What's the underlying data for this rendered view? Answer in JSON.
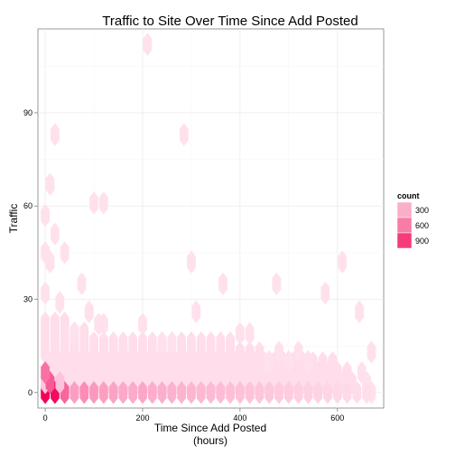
{
  "chart_data": {
    "type": "hexbin",
    "title": "Traffic to Site Over Time Since Add Posted",
    "xlabel_line1": "Time Since Add Posted",
    "xlabel_line2": "(hours)",
    "ylabel": "Traffic",
    "xlim": [
      -15,
      695
    ],
    "ylim": [
      -5,
      117
    ],
    "xticks": [
      0,
      200,
      400,
      600
    ],
    "yticks": [
      0,
      30,
      60,
      90
    ],
    "grid": true,
    "legend": {
      "title": "count",
      "placement": "right",
      "entries": [
        {
          "label": "300",
          "color": "#fbaec9"
        },
        {
          "label": "600",
          "color": "#f97ca5"
        },
        {
          "label": "900",
          "color": "#f73b7a"
        }
      ]
    },
    "colors": {
      "low": "#ffe3ee",
      "high": "#f2005c",
      "panel_border": "#7f7f7f",
      "grid": "#ebebeb"
    },
    "hex_size": {
      "x": 10,
      "y": 3.2
    },
    "cells": [
      {
        "x": 0,
        "y": 0,
        "count": 1000
      },
      {
        "x": 20,
        "y": 0,
        "count": 950
      },
      {
        "x": 40,
        "y": 0,
        "count": 550
      },
      {
        "x": 60,
        "y": 0,
        "count": 300
      },
      {
        "x": 80,
        "y": 0,
        "count": 380
      },
      {
        "x": 100,
        "y": 0,
        "count": 330
      },
      {
        "x": 120,
        "y": 0,
        "count": 300
      },
      {
        "x": 140,
        "y": 0,
        "count": 280
      },
      {
        "x": 160,
        "y": 0,
        "count": 260
      },
      {
        "x": 180,
        "y": 0,
        "count": 250
      },
      {
        "x": 200,
        "y": 0,
        "count": 270
      },
      {
        "x": 220,
        "y": 0,
        "count": 240
      },
      {
        "x": 240,
        "y": 0,
        "count": 230
      },
      {
        "x": 260,
        "y": 0,
        "count": 220
      },
      {
        "x": 280,
        "y": 0,
        "count": 210
      },
      {
        "x": 300,
        "y": 0,
        "count": 200
      },
      {
        "x": 320,
        "y": 0,
        "count": 190
      },
      {
        "x": 340,
        "y": 0,
        "count": 180
      },
      {
        "x": 360,
        "y": 0,
        "count": 170
      },
      {
        "x": 380,
        "y": 0,
        "count": 160
      },
      {
        "x": 400,
        "y": 0,
        "count": 150
      },
      {
        "x": 420,
        "y": 0,
        "count": 140
      },
      {
        "x": 440,
        "y": 0,
        "count": 130
      },
      {
        "x": 460,
        "y": 0,
        "count": 120
      },
      {
        "x": 480,
        "y": 0,
        "count": 110
      },
      {
        "x": 500,
        "y": 0,
        "count": 100
      },
      {
        "x": 520,
        "y": 0,
        "count": 90
      },
      {
        "x": 540,
        "y": 0,
        "count": 80
      },
      {
        "x": 560,
        "y": 0,
        "count": 70
      },
      {
        "x": 580,
        "y": 0,
        "count": 60
      },
      {
        "x": 600,
        "y": 0,
        "count": 50
      },
      {
        "x": 620,
        "y": 0,
        "count": 40
      },
      {
        "x": 640,
        "y": 0,
        "count": 30
      },
      {
        "x": 660,
        "y": 0,
        "count": 20
      },
      {
        "x": 0,
        "y": 3.2,
        "count": 120
      },
      {
        "x": 10,
        "y": 3.2,
        "count": 600
      },
      {
        "x": 30,
        "y": 3.2,
        "count": 140
      },
      {
        "x": 0,
        "y": 6.4,
        "count": 500
      }
    ],
    "band": {
      "rows": [
        {
          "y": 3.2,
          "x_from": 30,
          "x_to": 640
        },
        {
          "y": 6.4,
          "x_from": 20,
          "x_to": 620
        },
        {
          "y": 9.6,
          "x_from": 10,
          "x_to": 590
        },
        {
          "y": 12.8,
          "x_from": 0,
          "x_to": 440
        },
        {
          "y": 16,
          "x_from": 0,
          "x_to": 380
        },
        {
          "y": 19.2,
          "x_from": 0,
          "x_to": 90
        },
        {
          "y": 22.4,
          "x_from": 0,
          "x_to": 50
        }
      ],
      "count": 25
    },
    "scatter_points": [
      {
        "x": 210,
        "y": 112
      },
      {
        "x": 20,
        "y": 83
      },
      {
        "x": 285,
        "y": 83
      },
      {
        "x": 10,
        "y": 67
      },
      {
        "x": 0,
        "y": 57
      },
      {
        "x": 100,
        "y": 61
      },
      {
        "x": 120,
        "y": 61
      },
      {
        "x": 20,
        "y": 51
      },
      {
        "x": 0,
        "y": 45
      },
      {
        "x": 40,
        "y": 45
      },
      {
        "x": 10,
        "y": 42
      },
      {
        "x": 300,
        "y": 42
      },
      {
        "x": 610,
        "y": 42
      },
      {
        "x": 75,
        "y": 35
      },
      {
        "x": 365,
        "y": 35
      },
      {
        "x": 475,
        "y": 35
      },
      {
        "x": 0,
        "y": 32
      },
      {
        "x": 575,
        "y": 32
      },
      {
        "x": 30,
        "y": 29
      },
      {
        "x": 90,
        "y": 26
      },
      {
        "x": 310,
        "y": 26
      },
      {
        "x": 645,
        "y": 26
      },
      {
        "x": 200,
        "y": 22
      },
      {
        "x": 110,
        "y": 22
      },
      {
        "x": 120,
        "y": 22
      },
      {
        "x": 60,
        "y": 19
      },
      {
        "x": 400,
        "y": 19
      },
      {
        "x": 420,
        "y": 19
      },
      {
        "x": 240,
        "y": 16
      },
      {
        "x": 260,
        "y": 16
      },
      {
        "x": 480,
        "y": 13
      },
      {
        "x": 520,
        "y": 13
      },
      {
        "x": 670,
        "y": 13
      },
      {
        "x": 460,
        "y": 10
      },
      {
        "x": 500,
        "y": 10
      },
      {
        "x": 540,
        "y": 10
      },
      {
        "x": 650,
        "y": 6.4
      },
      {
        "x": 660,
        "y": 3.2
      },
      {
        "x": 670,
        "y": 0
      }
    ]
  }
}
